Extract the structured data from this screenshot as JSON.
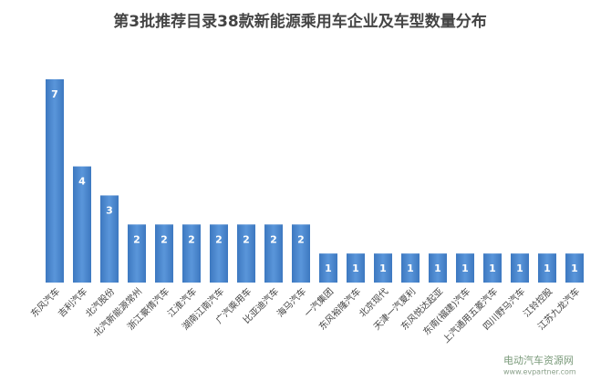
{
  "chart_data": {
    "type": "bar",
    "title": "第3批推荐目录38款新能源乘用车企业及车型数量分布",
    "categories": [
      "东风汽车",
      "吉利汽车",
      "北汽股份",
      "北汽新能源常州",
      "浙江豪情汽车",
      "江淮汽车",
      "湖南江南汽车",
      "广汽乘用车",
      "比亚迪汽车",
      "海马汽车",
      "一汽集团",
      "东风裕隆汽车",
      "北京现代",
      "天津一汽夏利",
      "东风悦达起亚",
      "东南(福建)汽车",
      "上汽通用五菱汽车",
      "四川野马汽车",
      "江铃控股",
      "江苏九龙汽车"
    ],
    "values": [
      7,
      4,
      3,
      2,
      2,
      2,
      2,
      2,
      2,
      2,
      1,
      1,
      1,
      1,
      1,
      1,
      1,
      1,
      1,
      1
    ],
    "color": "#4f8ad0"
  },
  "watermark": {
    "name": "电动汽车资源网",
    "url": "www.evpartner.com"
  }
}
